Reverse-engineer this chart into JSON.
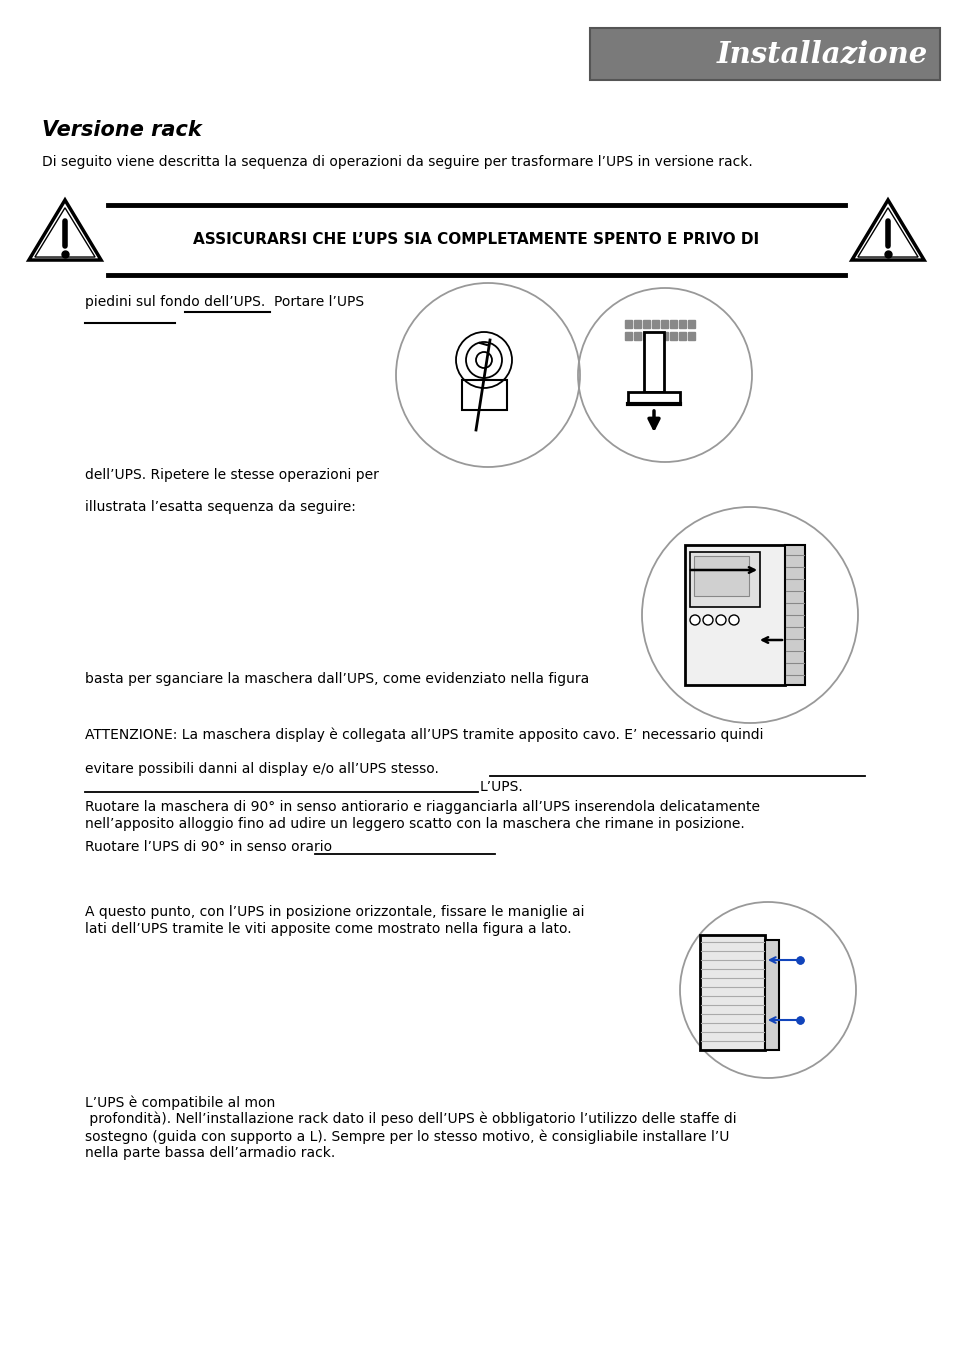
{
  "bg_color": "#ffffff",
  "header_bg": "#7a7a7a",
  "header_text": "Installazione",
  "title_text": "Versione rack",
  "intro_text": "Di seguito viene descritta la sequenza di operazioni da seguire per trasformare l’UPS in versione rack.",
  "warning_text": "ASSICURARSI CHE L’UPS SIA COMPLETAMENTE SPENTO E PRIVO DI",
  "line1": "piedini sul fondo dell’UPS.  Portare l’UPS",
  "line2": "dell’UPS. Ripetere le stesse operazioni per",
  "line3": "illustrata l’esatta sequenza da seguire:",
  "line4": "basta per sganciare la maschera dall’UPS, come evidenziato nella figura",
  "line5": "ATTENZIONE: La maschera display è collegata all’UPS tramite apposito cavo. E’ necessario quindi",
  "line6": "evitare possibili danni al display e/o all’UPS stesso.",
  "line7": "L’UPS.",
  "line8": "Ruotare la maschera di 90° in senso antiorario e riagganciarla all’UPS inserendola delicatamente",
  "line9": "nell’apposito alloggio fino ad udire un leggero scatto con la maschera che rimane in posizione.",
  "line10": "Ruotare l’UPS di 90° in senso orario",
  "line11": "A questo punto, con l’UPS in posizione orizzontale, fissare le maniglie ai",
  "line12": "lati dell’UPS tramite le viti apposite come mostrato nella figura a lato.",
  "line13": "L’UPS è compatibile al mon",
  "line14": " profondità). Nell’installazione rack dato il peso dell’UPS è obbligatorio l’utilizzo delle staffe di",
  "line15": "sostegno (guida con supporto a L). Sempre per lo stesso motivo, è consigliabile installare l’U",
  "line16": "nella parte bassa dell’armadio rack."
}
